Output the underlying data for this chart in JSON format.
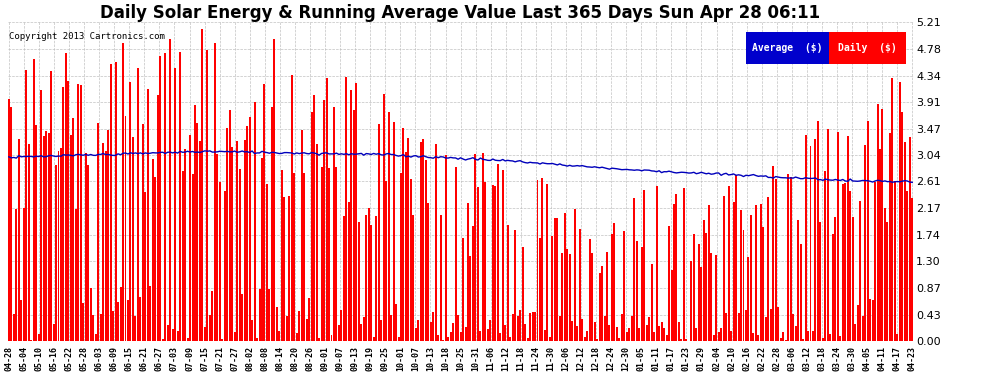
{
  "title": "Daily Solar Energy & Running Average Value Last 365 Days Sun Apr 28 06:11",
  "copyright": "Copyright 2013 Cartronics.com",
  "ytick_values": [
    0.0,
    0.43,
    0.87,
    1.3,
    1.74,
    2.17,
    2.61,
    3.04,
    3.47,
    3.91,
    4.34,
    4.78,
    5.21
  ],
  "ylim": [
    0.0,
    5.21
  ],
  "bar_color": "#ff0000",
  "avg_color": "#0000bb",
  "background_color": "#ffffff",
  "grid_color": "#bbbbbb",
  "title_fontsize": 12,
  "legend_avg_color": "#0000cc",
  "legend_daily_color": "#ff0000",
  "legend_avg_text": "Average  ($)",
  "legend_daily_text": "Daily  ($)",
  "x_labels": [
    "04-28",
    "05-04",
    "05-10",
    "05-16",
    "05-22",
    "05-28",
    "06-03",
    "06-09",
    "06-15",
    "06-21",
    "06-27",
    "07-03",
    "07-09",
    "07-15",
    "07-21",
    "07-27",
    "08-02",
    "08-08",
    "08-14",
    "08-20",
    "08-26",
    "09-01",
    "09-07",
    "09-13",
    "09-19",
    "09-25",
    "10-01",
    "10-07",
    "10-13",
    "10-18",
    "10-25",
    "10-31",
    "11-06",
    "11-12",
    "11-18",
    "11-24",
    "11-30",
    "12-06",
    "12-12",
    "12-18",
    "12-24",
    "12-30",
    "01-05",
    "01-11",
    "01-17",
    "01-23",
    "01-29",
    "02-04",
    "02-10",
    "02-16",
    "02-22",
    "02-28",
    "03-06",
    "03-12",
    "03-18",
    "03-24",
    "03-30",
    "04-05",
    "04-11",
    "04-17",
    "04-23"
  ],
  "n_bars": 365,
  "seed": 7
}
